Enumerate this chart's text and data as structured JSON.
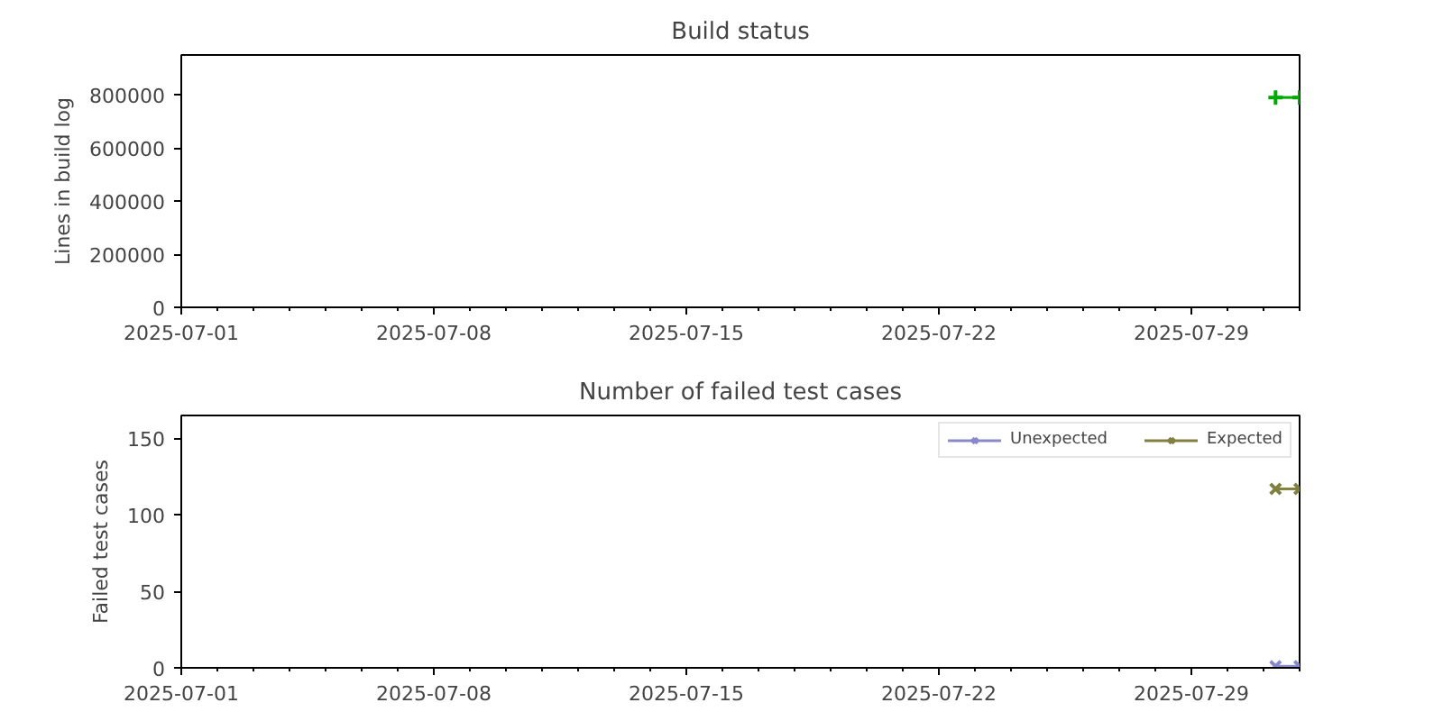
{
  "chart_data": [
    {
      "type": "line",
      "title": "Build status",
      "ylabel": "Lines in build log",
      "xlim": [
        "2025-07-01",
        "2025-08-01"
      ],
      "xticks": [
        "2025-07-01",
        "2025-07-08",
        "2025-07-15",
        "2025-07-22",
        "2025-07-29"
      ],
      "ylim": [
        0,
        950000
      ],
      "yticks": [
        0,
        200000,
        400000,
        600000,
        800000
      ],
      "grid": false,
      "legend": false,
      "marker": "cross",
      "series": [
        {
          "color": "#00aa00",
          "x": [
            "2025-07-31T08:00",
            "2025-08-01T00:00"
          ],
          "values": [
            790000,
            790000
          ]
        }
      ]
    },
    {
      "type": "line",
      "title": "Number of failed test cases",
      "ylabel": "Failed test cases",
      "xlim": [
        "2025-07-01",
        "2025-08-01"
      ],
      "xticks": [
        "2025-07-01",
        "2025-07-08",
        "2025-07-15",
        "2025-07-22",
        "2025-07-29"
      ],
      "ylim": [
        0,
        165
      ],
      "yticks": [
        0,
        50,
        100,
        150
      ],
      "grid": false,
      "legend": "top right",
      "marker": "x",
      "series": [
        {
          "name": "Unexpected",
          "color": "#8888cc",
          "x": [
            "2025-07-31T08:00",
            "2025-08-01T00:00"
          ],
          "values": [
            1,
            1
          ]
        },
        {
          "name": "Expected",
          "color": "#808040",
          "x": [
            "2025-07-31T08:00",
            "2025-08-01T00:00"
          ],
          "values": [
            117,
            117
          ]
        }
      ]
    }
  ]
}
